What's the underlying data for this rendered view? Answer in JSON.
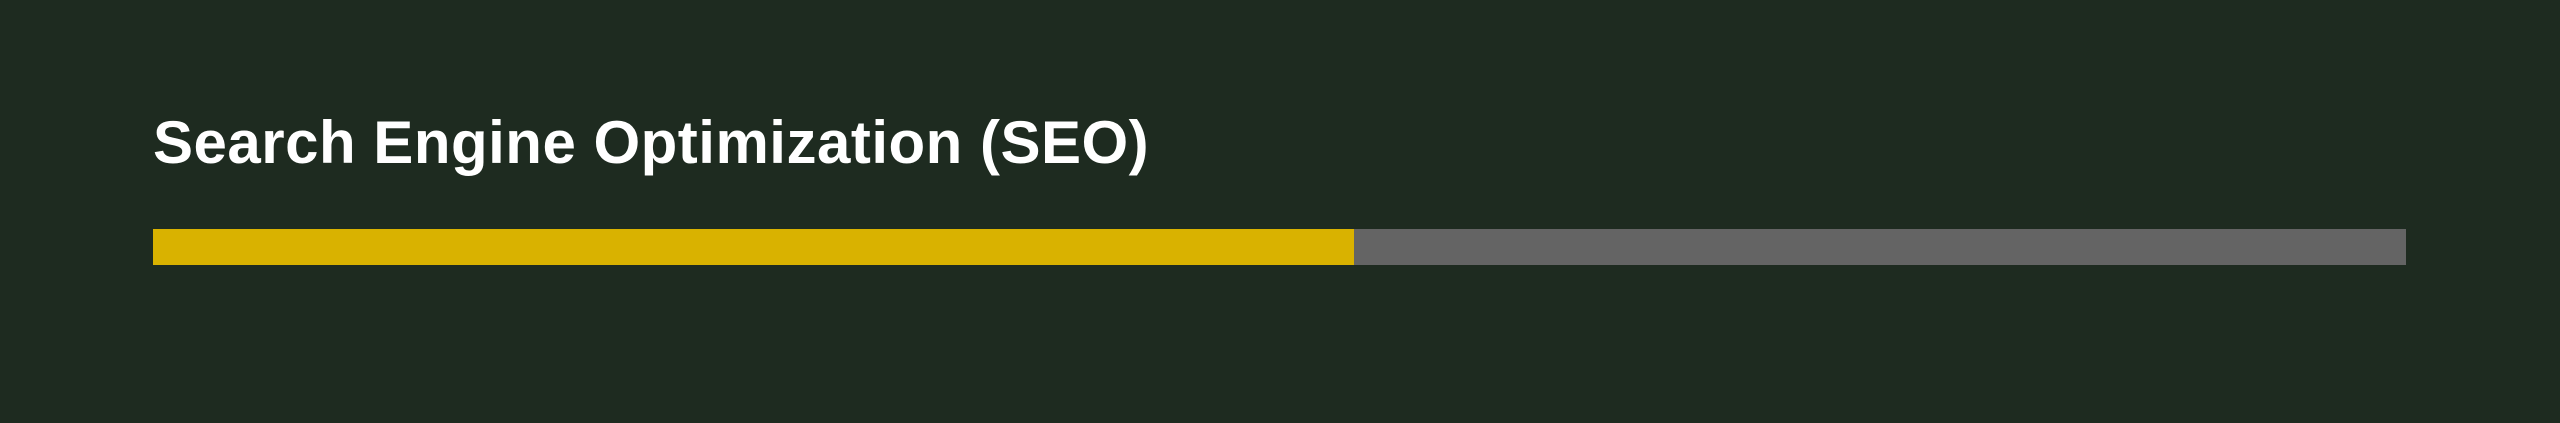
{
  "skill": {
    "title": "Search Engine Optimization (SEO)",
    "progress": 0.533
  },
  "colors": {
    "background": "#1e2b20",
    "fill": "#d9b200",
    "track": "#646464",
    "text": "#ffffff"
  }
}
